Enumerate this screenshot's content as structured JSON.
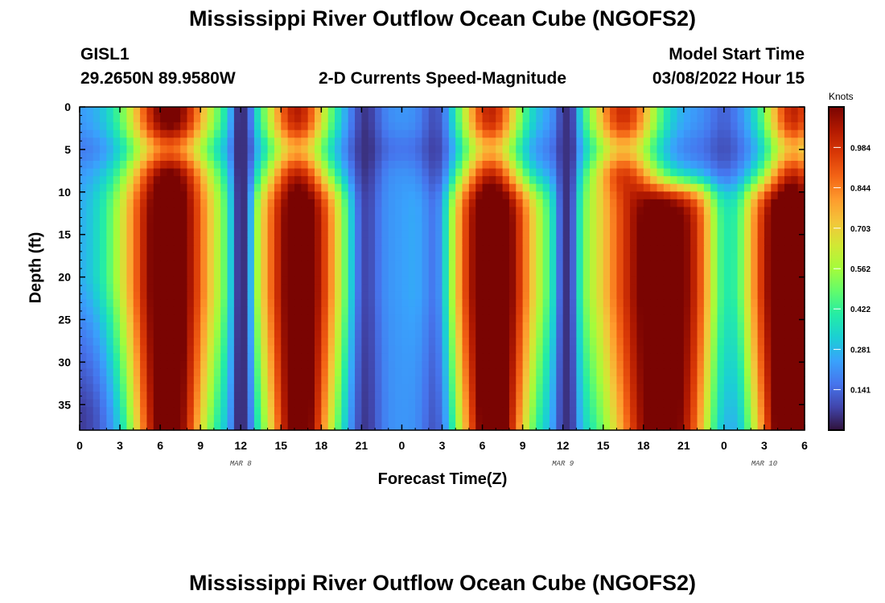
{
  "page": {
    "title": "Mississippi River Outflow Ocean Cube (NGOFS2)",
    "station_id": "GISL1",
    "station_coords": "29.2650N  89.9580W",
    "subtitle": "2-D Currents Speed-Magnitude",
    "model_start_label": "Model Start Time",
    "model_start_value": "03/08/2022 Hour 15",
    "bottom_title": "Mississippi River Outflow Ocean Cube (NGOFS2)"
  },
  "colors": {
    "colormap": [
      "#30123b",
      "#4145ab",
      "#4675ed",
      "#39a2fc",
      "#1bcfd4",
      "#24eca6",
      "#61fc6c",
      "#a4fc3b",
      "#d1e834",
      "#f3c63a",
      "#fe9b2d",
      "#f36315",
      "#d93806",
      "#b11901",
      "#7a0402"
    ]
  },
  "chart_data": {
    "type": "heatmap",
    "xlabel": "Forecast Time(Z)",
    "ylabel": "Depth (ft)",
    "colorbar_label": "Knots",
    "xlim": [
      0,
      54
    ],
    "ylim": [
      0,
      38
    ],
    "vmin": 0.0,
    "vmax": 1.125,
    "x_ticks": [
      0,
      3,
      6,
      9,
      12,
      15,
      18,
      21,
      24,
      27,
      30,
      33,
      36,
      39,
      42,
      45,
      48,
      51,
      54
    ],
    "x_tick_labels": [
      "0",
      "3",
      "6",
      "9",
      "12",
      "15",
      "18",
      "21",
      "0",
      "3",
      "6",
      "9",
      "12",
      "15",
      "18",
      "21",
      "0",
      "3",
      "6"
    ],
    "y_ticks": [
      0,
      5,
      10,
      15,
      20,
      25,
      30,
      35
    ],
    "y_tick_labels": [
      "0",
      "5",
      "10",
      "15",
      "20",
      "25",
      "30",
      "35"
    ],
    "date_labels": [
      {
        "x": 12,
        "text": "MAR 8"
      },
      {
        "x": 36,
        "text": "MAR 9"
      },
      {
        "x": 51,
        "text": "MAR 10"
      }
    ],
    "colorbar_ticks": [
      0.141,
      0.281,
      0.422,
      0.562,
      0.703,
      0.844,
      0.984
    ],
    "colorbar_tick_labels": [
      "0.141",
      "0.281",
      "0.422",
      "0.562",
      "0.703",
      "0.844",
      "0.984"
    ],
    "speed_model": {
      "surface_peaks": [
        {
          "x": 6.7,
          "amp": 0.96,
          "width": 3.2
        },
        {
          "x": 16.2,
          "amp": 0.82,
          "width": 2.4
        },
        {
          "x": 30.6,
          "amp": 0.8,
          "width": 2.3
        },
        {
          "x": 40.5,
          "amp": 0.78,
          "width": 2.6
        },
        {
          "x": 53.2,
          "amp": 0.8,
          "width": 2.2
        }
      ],
      "deep_peaks": [
        {
          "x": 6.6,
          "amp": 1.02,
          "width": 3.7
        },
        {
          "x": 16.4,
          "amp": 1.0,
          "width": 3.3
        },
        {
          "x": 30.8,
          "amp": 1.05,
          "width": 3.4
        },
        {
          "x": 43.4,
          "amp": 1.0,
          "width": 5.3
        },
        {
          "x": 52.8,
          "amp": 1.05,
          "width": 3.5
        }
      ],
      "slack_times": [
        {
          "x": 12.1,
          "depth": 1.0,
          "width": 0.75
        },
        {
          "x": 36.3,
          "depth": 1.0,
          "width": 0.75
        },
        {
          "x": 21.3,
          "depth": 0.75,
          "width": 1.2
        },
        {
          "x": 26.5,
          "depth": 0.6,
          "width": 1.1
        },
        {
          "x": 48.0,
          "depth": 0.4,
          "width": 1.3
        }
      ],
      "background": 0.22
    }
  }
}
